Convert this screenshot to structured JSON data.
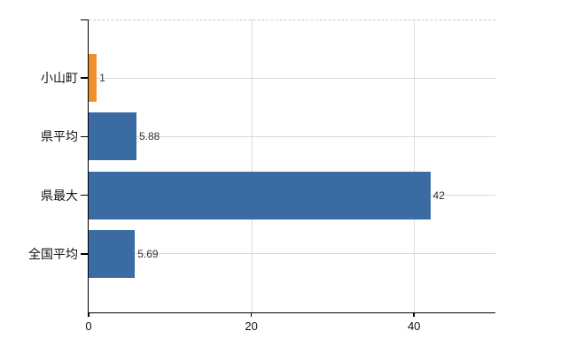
{
  "chart_data": {
    "type": "bar",
    "orientation": "horizontal",
    "title": "",
    "xlabel": "",
    "ylabel": "",
    "categories": [
      "小山町",
      "県平均",
      "県最大",
      "全国平均"
    ],
    "values": [
      1,
      5.88,
      42,
      5.69
    ],
    "value_labels": [
      "1",
      "5.88",
      "42",
      "5.69"
    ],
    "bar_colors": [
      "#ee8f2c",
      "#3a6ba3",
      "#3a6ba3",
      "#3a6ba3"
    ],
    "xlim": [
      0,
      50
    ],
    "x_ticks": [
      0,
      20,
      40
    ],
    "x_tick_labels": [
      "0",
      "20",
      "40"
    ],
    "grid": true,
    "legend": false
  },
  "colors": {
    "highlight_bar": "#ee8f2c",
    "default_bar": "#3a6ba3",
    "gridline": "#d5dcd5",
    "axis": "#000000",
    "background": "#ffffff",
    "top_border": "#c9c9c9"
  }
}
